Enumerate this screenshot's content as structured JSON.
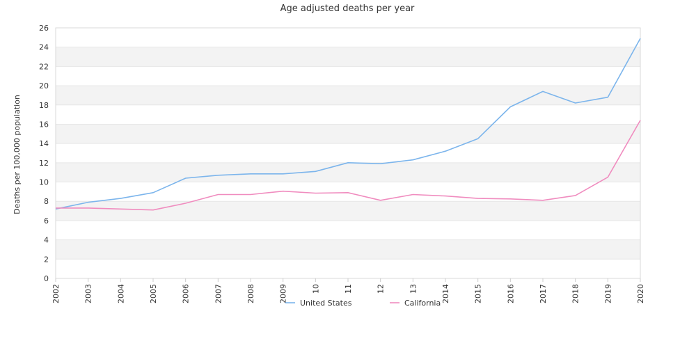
{
  "chart_data": {
    "type": "line",
    "title": "Age adjusted deaths per year",
    "xlabel": "",
    "ylabel": "Deaths per 100,000 population",
    "x": [
      "2002",
      "2003",
      "2004",
      "2005",
      "2006",
      "2007",
      "2008",
      "2009",
      "2010",
      "2011",
      "2012",
      "2013",
      "2014",
      "2015",
      "2016",
      "2017",
      "2018",
      "2019",
      "2020"
    ],
    "x_tick_labels": [
      "2002",
      "2003",
      "2004",
      "2005",
      "2006",
      "2007",
      "2008",
      "2009",
      "10",
      "11",
      "12",
      "13",
      "2014",
      "2015",
      "2016",
      "2017",
      "2018",
      "2019",
      "2020"
    ],
    "ylim": [
      0,
      26
    ],
    "yticks": [
      0,
      2,
      4,
      6,
      8,
      10,
      12,
      14,
      16,
      18,
      20,
      22,
      24,
      26
    ],
    "grid": "alternating horizontal bands",
    "legend": "bottom-center",
    "series": [
      {
        "name": "United States",
        "color": "#7cb5ec",
        "values": [
          7.2,
          7.9,
          8.3,
          8.9,
          10.4,
          10.7,
          10.85,
          10.85,
          11.1,
          12.0,
          11.9,
          12.3,
          13.2,
          14.5,
          17.8,
          19.4,
          18.2,
          18.8,
          24.9
        ]
      },
      {
        "name": "California",
        "color": "#f08cbf",
        "values": [
          7.3,
          7.3,
          7.2,
          7.1,
          7.8,
          8.7,
          8.7,
          9.05,
          8.85,
          8.9,
          8.1,
          8.7,
          8.55,
          8.3,
          8.25,
          8.1,
          8.6,
          10.5,
          16.4
        ]
      }
    ]
  }
}
